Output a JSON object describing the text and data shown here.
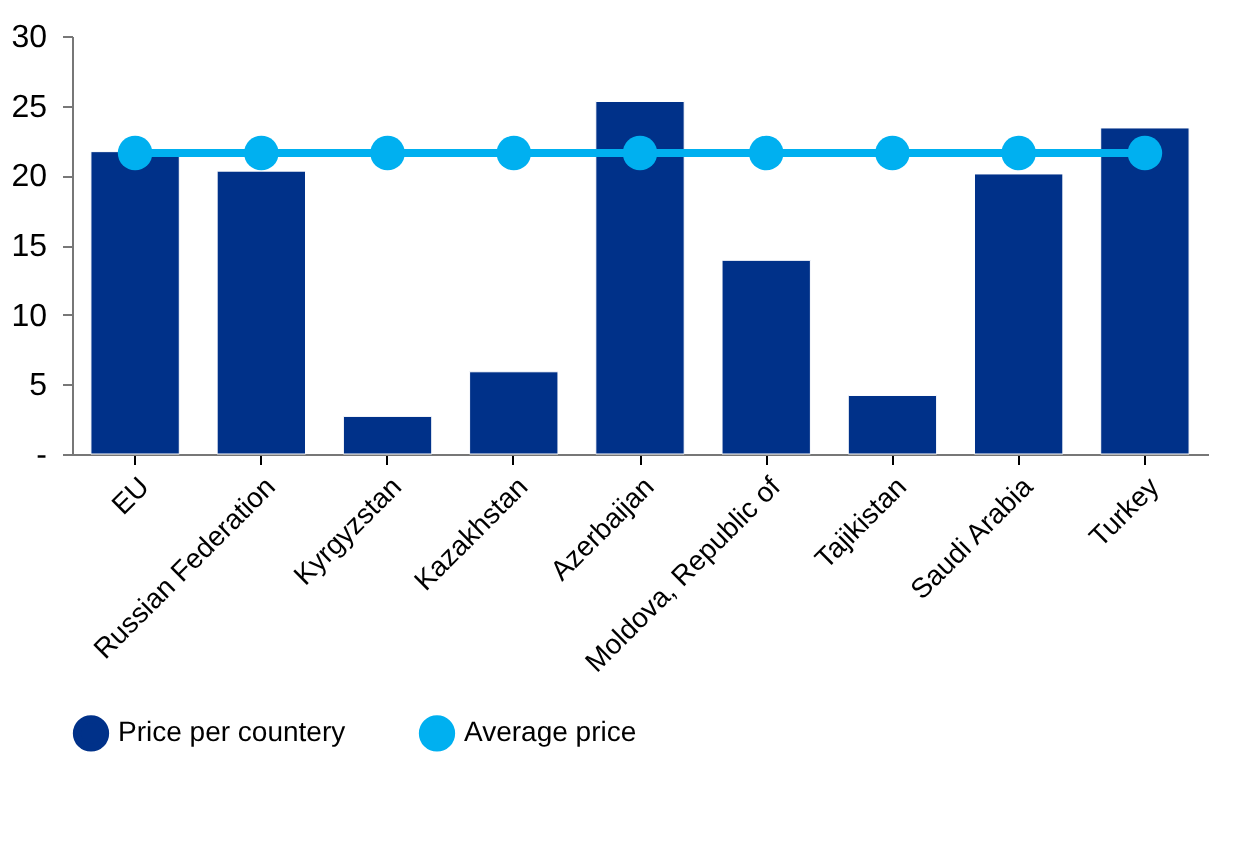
{
  "chart_data": {
    "type": "bar",
    "categories": [
      "EU",
      "Russian Federation",
      "Kyrgyzstan",
      "Kazakhstan",
      "Azerbaijan",
      "Moldova, Republic of",
      "Tajikistan",
      "Saudi Arabia",
      "Turkey"
    ],
    "series": [
      {
        "name": "Price per countery",
        "color": "#003189",
        "values": [
          21.7,
          20.3,
          2.7,
          5.9,
          25.3,
          13.9,
          4.2,
          20.1,
          23.4
        ]
      },
      {
        "name": "Average price",
        "type": "line",
        "color": "#00b0f0",
        "values": [
          21.6,
          21.6,
          21.6,
          21.6,
          21.6,
          21.6,
          21.6,
          21.6,
          21.6
        ]
      }
    ],
    "ylim": [
      0,
      30
    ],
    "yticks": [
      {
        "value": 0,
        "label": "-"
      },
      5,
      10,
      15,
      20,
      25,
      30
    ],
    "grid": false,
    "legend": "bottom",
    "marker": "circle",
    "line_style": "solid"
  }
}
